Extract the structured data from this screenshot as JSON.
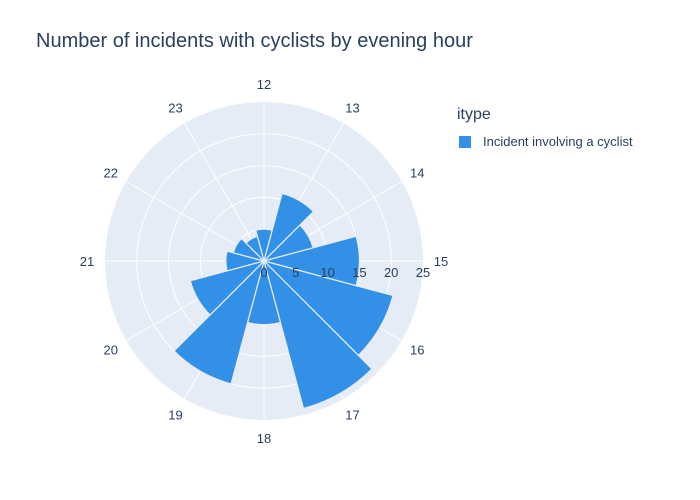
{
  "chart_data": {
    "type": "barpolar",
    "title": "Number of incidents with cyclists by evening hour",
    "angular_categories": [
      "12",
      "13",
      "14",
      "15",
      "16",
      "17",
      "18",
      "19",
      "20",
      "21",
      "22",
      "23"
    ],
    "series": [
      {
        "name": "Incident involving a cyclist",
        "color": "#3290e6",
        "values": [
          5,
          11,
          8,
          15,
          21,
          24,
          10,
          20,
          12,
          6,
          5,
          4
        ]
      }
    ],
    "radial_range": [
      0,
      25
    ],
    "radial_ticks": [
      "0",
      "5",
      "10",
      "15",
      "20",
      "25"
    ],
    "legend": {
      "title": "itype",
      "position": "right"
    },
    "grid": true
  },
  "colors": {
    "polar_bg": "#e5ecf6",
    "grid": "#ffffff",
    "text": "#2a3f5f"
  }
}
